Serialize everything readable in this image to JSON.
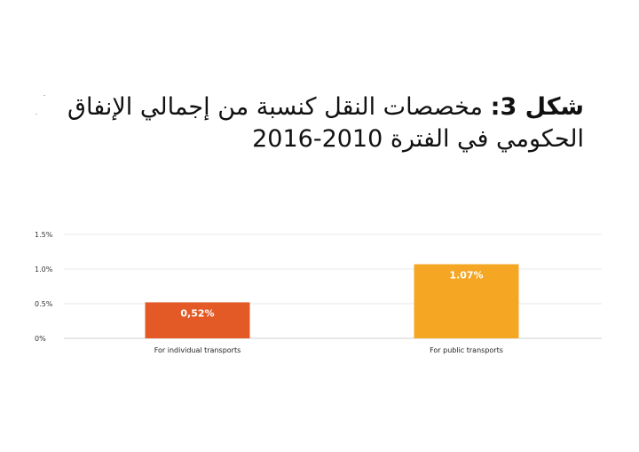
{
  "title": {
    "bold_prefix": "شكل 3:",
    "text": "مخصصات النقل كنسبة من إجمالي الإنفاق الحكومي في الفترة 2010-2016"
  },
  "colors": {
    "individual": "#e35a27",
    "public": "#f5a623"
  },
  "chart_data": {
    "type": "bar",
    "title": "شكل 3: مخصصات النقل كنسبة من إجمالي الإنفاق الحكومي في الفترة 2010-2016",
    "xlabel": "",
    "ylabel": "",
    "ylim": [
      0,
      1.5
    ],
    "yticks": [
      {
        "value": 0,
        "label": "0%"
      },
      {
        "value": 0.5,
        "label": "0.5%"
      },
      {
        "value": 1.0,
        "label": "1.0%"
      },
      {
        "value": 1.5,
        "label": "1.5%"
      }
    ],
    "categories": [
      "For individual transports",
      "For public transports"
    ],
    "values": [
      0.52,
      1.07
    ],
    "data_labels": [
      "0,52%",
      "1.07%"
    ],
    "grid": true,
    "legend": "none"
  }
}
